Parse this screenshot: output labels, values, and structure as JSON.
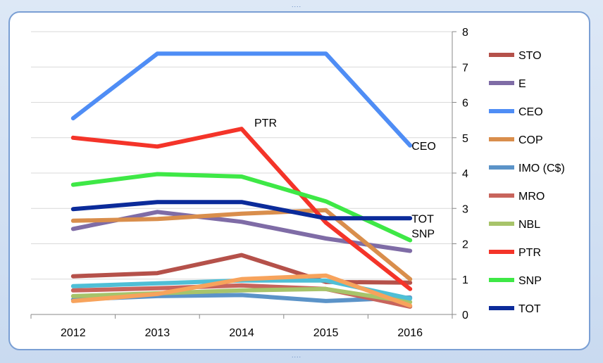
{
  "chart_data": {
    "type": "line",
    "categories": [
      "2012",
      "2013",
      "2014",
      "2015",
      "2016"
    ],
    "ylim": [
      0,
      8
    ],
    "yticks": [
      "0",
      "1",
      "2",
      "3",
      "4",
      "5",
      "6",
      "7",
      "8"
    ],
    "y_axis_side": "right",
    "grid": true,
    "legend_position": "right",
    "series": [
      {
        "name": "STO",
        "color": "#b5514a",
        "values": [
          1.08,
          1.17,
          1.68,
          0.92,
          0.9
        ]
      },
      {
        "name": "E",
        "color": "#7f6ca6",
        "values": [
          2.42,
          2.9,
          2.62,
          2.15,
          1.8
        ]
      },
      {
        "name": "CEO",
        "color": "#4f8df5",
        "values": [
          5.55,
          7.38,
          7.38,
          7.38,
          4.78
        ]
      },
      {
        "name": "COP",
        "color": "#d98e4c",
        "values": [
          2.65,
          2.7,
          2.85,
          2.95,
          1.0
        ]
      },
      {
        "name": "IMO (C$)",
        "color": "#5b93c8",
        "values": [
          0.42,
          0.52,
          0.55,
          0.38,
          0.48
        ]
      },
      {
        "name": "MRO",
        "color": "#c8645c",
        "values": [
          0.68,
          0.74,
          0.82,
          0.72,
          0.22
        ]
      },
      {
        "name": "NBL",
        "color": "#a7c46a",
        "values": [
          0.52,
          0.6,
          0.68,
          0.72,
          0.35
        ]
      },
      {
        "name": "PTR",
        "color": "#f43429",
        "values": [
          5.0,
          4.75,
          5.25,
          2.6,
          0.72
        ]
      },
      {
        "name": "SNP",
        "color": "#3ee846",
        "values": [
          3.67,
          3.97,
          3.9,
          3.2,
          2.1
        ]
      },
      {
        "name": "TOT",
        "color": "#0b2b9a",
        "values": [
          2.98,
          3.18,
          3.18,
          2.72,
          2.72
        ]
      },
      {
        "name": "",
        "color": "#4fbfd6",
        "values": [
          0.8,
          0.88,
          0.96,
          0.96,
          0.45
        ]
      },
      {
        "name": "",
        "color": "#f7a35c",
        "values": [
          0.38,
          0.58,
          1.0,
          1.1,
          0.25
        ]
      }
    ],
    "annotations": [
      {
        "text": "PTR",
        "series": "PTR"
      },
      {
        "text": "CEO",
        "series": "CEO"
      },
      {
        "text": "TOT",
        "series": "TOT"
      },
      {
        "text": "SNP",
        "series": "SNP"
      }
    ]
  },
  "legend": {
    "items": [
      {
        "label": "STO",
        "color": "#b5514a"
      },
      {
        "label": "E",
        "color": "#7f6ca6"
      },
      {
        "label": "CEO",
        "color": "#4f8df5"
      },
      {
        "label": "COP",
        "color": "#d98e4c"
      },
      {
        "label": "IMO (C$)",
        "color": "#5b93c8"
      },
      {
        "label": "MRO",
        "color": "#c8645c"
      },
      {
        "label": "NBL",
        "color": "#a7c46a"
      },
      {
        "label": "PTR",
        "color": "#f43429"
      },
      {
        "label": "SNP",
        "color": "#3ee846"
      },
      {
        "label": "TOT",
        "color": "#0b2b9a"
      }
    ]
  },
  "frame": {
    "handle_dots": "...."
  }
}
